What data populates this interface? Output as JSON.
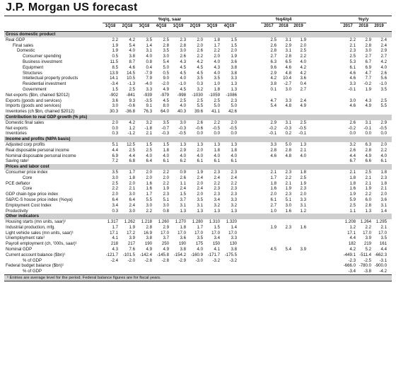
{
  "title": "J.P. Morgan US forecast",
  "headers": {
    "groups": [
      "%q/q, saar",
      "%q4/q4",
      "%y/y"
    ],
    "columns": [
      "1Q18",
      "2Q18",
      "3Q18",
      "4Q18",
      "1Q19",
      "2Q19",
      "3Q19",
      "4Q19",
      "2017",
      "2018",
      "2019",
      "2017",
      "2018",
      "2019"
    ]
  },
  "rows": [
    {
      "label": "Gross domestic product",
      "section": true,
      "indent": 0,
      "v": []
    },
    {
      "label": "Real GDP",
      "indent": 0,
      "v": [
        "2.2",
        "4.2",
        "3.5",
        "2.5",
        "2.3",
        "2.0",
        "1.8",
        "1.5",
        "2.5",
        "3.1",
        "1.9",
        "2.2",
        "2.9",
        "2.4"
      ]
    },
    {
      "label": "Final sales",
      "indent": 1,
      "v": [
        "1.9",
        "5.4",
        "1.4",
        "2.8",
        "2.8",
        "2.0",
        "1.7",
        "1.5",
        "2.6",
        "2.9",
        "2.0",
        "2.1",
        "2.8",
        "2.4"
      ]
    },
    {
      "label": "Domestic",
      "indent": 2,
      "v": [
        "1.9",
        "4.0",
        "3.1",
        "3.5",
        "3.0",
        "2.6",
        "2.2",
        "2.0",
        "2.8",
        "3.1",
        "2.5",
        "2.3",
        "3.0",
        "2.9"
      ]
    },
    {
      "label": "Consumer spending",
      "indent": 3,
      "v": [
        "0.5",
        "3.8",
        "4.0",
        "3.0",
        "2.6",
        "2.2",
        "2.0",
        "1.9",
        "2.7",
        "2.8",
        "2.2",
        "2.5",
        "2.7",
        "2.7"
      ]
    },
    {
      "label": "Business investment",
      "indent": 3,
      "v": [
        "11.5",
        "8.7",
        "0.8",
        "5.4",
        "4.3",
        "4.2",
        "4.0",
        "3.6",
        "6.3",
        "6.5",
        "4.0",
        "5.3",
        "6.7",
        "4.2"
      ]
    },
    {
      "label": "Equipment",
      "indent": 3,
      "v": [
        "8.5",
        "4.6",
        "0.4",
        "5.0",
        "4.5",
        "4.5",
        "4.3",
        "3.8",
        "9.6",
        "4.6",
        "4.2",
        "6.1",
        "6.9",
        "4.0"
      ]
    },
    {
      "label": "Structures",
      "indent": 3,
      "v": [
        "13.9",
        "14.5",
        "-7.9",
        "0.5",
        "4.5",
        "4.5",
        "4.0",
        "3.8",
        "2.9",
        "4.8",
        "4.2",
        "4.6",
        "4.7",
        "2.6"
      ]
    },
    {
      "label": "Intellectual property products",
      "indent": 3,
      "v": [
        "14.1",
        "10.5",
        "7.9",
        "9.0",
        "4.0",
        "3.5",
        "3.5",
        "3.3",
        "4.2",
        "10.4",
        "3.6",
        "4.6",
        "7.7",
        "5.6"
      ]
    },
    {
      "label": "Residential investment",
      "indent": 3,
      "v": [
        "-3.4",
        "-1.3",
        "-4.0",
        "-2.0",
        "-1.0",
        "0.3",
        "1.0",
        "1.3",
        "3.8",
        "-2.7",
        "0.4",
        "3.3",
        "-0.2",
        "-1.0"
      ]
    },
    {
      "label": "Government",
      "indent": 3,
      "v": [
        "1.5",
        "2.5",
        "3.3",
        "4.9",
        "4.5",
        "3.2",
        "1.8",
        "1.3",
        "0.1",
        "3.0",
        "2.7",
        "-0.1",
        "1.9",
        "3.5"
      ]
    },
    {
      "label": "Net exports ($bn, chained $2012)",
      "indent": 0,
      "v": [
        "-902",
        "-841",
        "-939",
        "-979",
        "-998",
        "-1030",
        "-1059",
        "-1086",
        "",
        "",
        "",
        "",
        "",
        ""
      ]
    },
    {
      "label": "Exports (goods and services)",
      "indent": 0,
      "v": [
        "3.6",
        "9.3",
        "-3.5",
        "4.5",
        "2.5",
        "2.5",
        "2.5",
        "2.3",
        "4.7",
        "3.3",
        "2.4",
        "3.0",
        "4.3",
        "2.5"
      ]
    },
    {
      "label": "Imports (goods and services)",
      "indent": 0,
      "v": [
        "3.0",
        "-0.6",
        "9.1",
        "8.0",
        "4.0",
        "5.5",
        "5.0",
        "5.0",
        "5.4",
        "4.8",
        "4.9",
        "4.6",
        "4.9",
        "5.5"
      ]
    },
    {
      "label": "Inventories (ch $bn, chained $2012)",
      "indent": 0,
      "v": [
        "30.3",
        "-36.8",
        "76.3",
        "64.0",
        "40.3",
        "39.6",
        "41.1",
        "42.6",
        "",
        "",
        "",
        "",
        "",
        ""
      ]
    },
    {
      "label": "Contribution to real GDP growth (% pts)",
      "section": true,
      "indent": 0,
      "v": []
    },
    {
      "label": "Domestic final sales",
      "indent": 0,
      "v": [
        "2.0",
        "4.2",
        "3.2",
        "3.5",
        "3.0",
        "2.6",
        "2.2",
        "2.0",
        "2.9",
        "3.1",
        "2.5",
        "2.6",
        "3.1",
        "2.9"
      ]
    },
    {
      "label": "Net exports",
      "indent": 0,
      "v": [
        "0.0",
        "1.2",
        "-1.8",
        "-0.7",
        "-0.3",
        "-0.6",
        "-0.5",
        "-0.5",
        "-0.2",
        "-0.3",
        "-0.5",
        "-0.2",
        "-0.1",
        "-0.5"
      ]
    },
    {
      "label": "Inventories",
      "indent": 0,
      "v": [
        "0.3",
        "-1.2",
        "2.1",
        "-0.3",
        "-0.5",
        "0.0",
        "0.0",
        "0.0",
        "-0.1",
        "0.2",
        "-0.1",
        "0.0",
        "0.0",
        "0.0"
      ]
    },
    {
      "label": "Income and profits (NIPA basis)",
      "section": true,
      "indent": 0,
      "v": []
    },
    {
      "label": "Adjusted corp profits",
      "indent": 0,
      "v": [
        "5.1",
        "12.5",
        "1.5",
        "1.5",
        "1.3",
        "1.3",
        "1.3",
        "1.3",
        "3.3",
        "5.0",
        "1.3",
        "3.2",
        "6.3",
        "2.0"
      ]
    },
    {
      "label": "Real disposable personal income",
      "indent": 0,
      "v": [
        "4.4",
        "2.5",
        "2.5",
        "1.8",
        "2.9",
        "2.0",
        "1.8",
        "1.8",
        "2.8",
        "2.8",
        "2.1",
        "2.6",
        "2.8",
        "2.2"
      ]
    },
    {
      "label": "Nominal disposable personal income",
      "indent": 0,
      "v": [
        "6.9",
        "4.4",
        "4.0",
        "4.0",
        "4.0",
        "4.0",
        "4.0",
        "4.0",
        "4.6",
        "4.8",
        "4.0",
        "4.4",
        "4.9",
        "4.0"
      ]
    },
    {
      "label": "Saving rate¹",
      "indent": 0,
      "v": [
        "7.2",
        "6.8",
        "6.4",
        "6.1",
        "6.2",
        "6.1",
        "6.1",
        "6.1",
        "",
        "",
        "",
        "6.7",
        "6.6",
        "6.1"
      ]
    },
    {
      "label": "Prices and labor cost",
      "section": true,
      "indent": 0,
      "v": []
    },
    {
      "label": "Consumer price index",
      "indent": 0,
      "v": [
        "3.5",
        "1.7",
        "2.0",
        "2.2",
        "0.9",
        "1.9",
        "2.3",
        "2.3",
        "2.1",
        "2.3",
        "1.8",
        "2.1",
        "2.5",
        "1.8"
      ]
    },
    {
      "label": "Core",
      "indent": 3,
      "v": [
        "3.0",
        "1.8",
        "2.0",
        "2.0",
        "2.6",
        "2.4",
        "2.4",
        "2.4",
        "1.7",
        "2.2",
        "2.5",
        "1.8",
        "2.1",
        "2.3"
      ]
    },
    {
      "label": "PCE deflator",
      "indent": 0,
      "v": [
        "2.5",
        "2.0",
        "1.6",
        "2.2",
        "1.1",
        "2.0",
        "2.2",
        "2.2",
        "1.8",
        "2.1",
        "1.9",
        "1.8",
        "2.1",
        "1.8"
      ]
    },
    {
      "label": "Core",
      "indent": 3,
      "v": [
        "2.2",
        "2.1",
        "1.6",
        "1.9",
        "2.4",
        "2.4",
        "2.3",
        "2.3",
        "1.6",
        "1.9",
        "2.3",
        "1.6",
        "1.9",
        "2.1"
      ]
    },
    {
      "label": "GDP chain-type price index",
      "indent": 0,
      "v": [
        "2.0",
        "3.0",
        "1.7",
        "2.3",
        "1.5",
        "2.0",
        "2.3",
        "2.3",
        "2.0",
        "2.3",
        "2.0",
        "1.9",
        "2.2",
        "2.0"
      ]
    },
    {
      "label": "S&P/C-S house price index (%oya)",
      "indent": 0,
      "v": [
        "6.4",
        "6.4",
        "5.5",
        "5.1",
        "3.7",
        "3.5",
        "3.4",
        "3.3",
        "6.1",
        "5.1",
        "3.3",
        "5.9",
        "6.0",
        "3.6"
      ]
    },
    {
      "label": "Employment Cost Index",
      "indent": 0,
      "v": [
        "3.4",
        "2.4",
        "3.0",
        "3.0",
        "3.1",
        "3.1",
        "3.2",
        "3.2",
        "2.7",
        "3.0",
        "3.1",
        "2.5",
        "2.8",
        "3.1"
      ]
    },
    {
      "label": "Productivity",
      "indent": 0,
      "v": [
        "0.3",
        "3.0",
        "2.2",
        "0.8",
        "1.3",
        "1.3",
        "1.3",
        "1.3",
        "1.0",
        "1.6",
        "1.2",
        "1.1",
        "1.3",
        "1.4"
      ]
    },
    {
      "label": "Other indicators",
      "section": true,
      "indent": 0,
      "v": []
    },
    {
      "label": "Housing starts (mn units, saar)¹",
      "indent": 0,
      "v": [
        "1.317",
        "1.262",
        "1.218",
        "1.260",
        "1.270",
        "1.280",
        "1.310",
        "1.320",
        "",
        "",
        "",
        "1.208",
        "1.264",
        "1.295"
      ]
    },
    {
      "label": "Industrial production, mfg.",
      "indent": 0,
      "v": [
        "1.7",
        "1.9",
        "2.8",
        "2.9",
        "1.8",
        "1.7",
        "1.5",
        "1.4",
        "1.9",
        "2.3",
        "1.6",
        "1.2",
        "2.2",
        "2.1"
      ]
    },
    {
      "label": "Light vehicle sales (mn units, saar)¹",
      "indent": 0,
      "v": [
        "17.1",
        "17.2",
        "16.9",
        "17.0",
        "17.0",
        "17.0",
        "17.0",
        "17.0",
        "",
        "",
        "",
        "17.1",
        "17.0",
        "17.0"
      ]
    },
    {
      "label": "Unemployment rate¹",
      "indent": 0,
      "v": [
        "4.1",
        "3.9",
        "3.8",
        "3.7",
        "3.6",
        "3.5",
        "3.4",
        "3.3",
        "",
        "",
        "",
        "4.4",
        "3.9",
        "3.5"
      ]
    },
    {
      "label": "Payroll employment (ch, '000s, saar)¹",
      "indent": 0,
      "v": [
        "218",
        "217",
        "190",
        "250",
        "190",
        "175",
        "150",
        "130",
        "",
        "",
        "",
        "182",
        "219",
        "161"
      ]
    },
    {
      "label": "Nominal GDP",
      "indent": 0,
      "v": [
        "4.3",
        "7.6",
        "4.9",
        "4.9",
        "3.8",
        "4.0",
        "4.1",
        "3.8",
        "4.5",
        "5.4",
        "3.9",
        "4.2",
        "5.2",
        "4.4"
      ]
    },
    {
      "label": "Current account balance ($bn)¹",
      "indent": 0,
      "v": [
        "-121.7",
        "-101.5",
        "-142.4",
        "-145.8",
        "-154.2",
        "-160.9",
        "-171.7",
        "-175.5",
        "",
        "",
        "",
        "-449.1",
        "-511.4",
        "-662.3"
      ]
    },
    {
      "label": "% of GDP",
      "indent": 3,
      "v": [
        "-2.4",
        "-2.0",
        "-2.8",
        "-2.8",
        "-2.9",
        "-3.0",
        "-3.2",
        "-3.2",
        "",
        "",
        "",
        "-2.3",
        "-2.5",
        "-3.1"
      ]
    },
    {
      "label": "Federal budget balance ($bn)¹",
      "indent": 0,
      "v": [
        "",
        "",
        "",
        "",
        "",
        "",
        "",
        "",
        "",
        "",
        "",
        "-666.0",
        "-780.0",
        "-900.0"
      ]
    },
    {
      "label": "% of GDP",
      "indent": 3,
      "v": [
        "",
        "",
        "",
        "",
        "",
        "",
        "",
        "",
        "",
        "",
        "",
        "-3.4",
        "-3.8",
        "-4.2"
      ]
    }
  ],
  "footnote": "¹ Entries are average level for the period. Federal balance figures are for fiscal years."
}
